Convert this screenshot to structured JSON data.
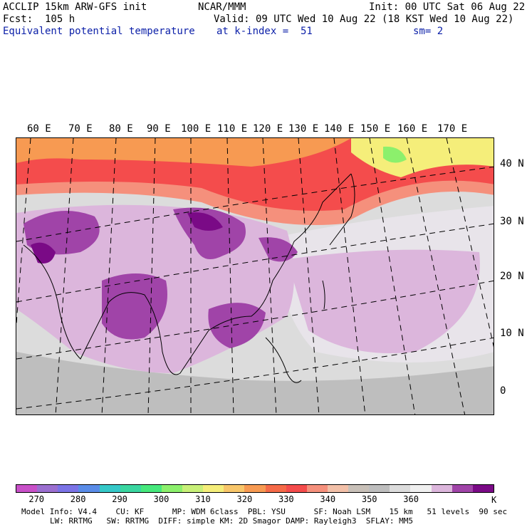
{
  "header": {
    "line1_left": "ACCLIP 15km ARW-GFS init",
    "line1_center": "NCAR/MMM",
    "line1_right": "Init: 00 UTC Sat 06 Aug 22",
    "line2_left": "Fcst:  105 h",
    "line2_right": "Valid: 09 UTC Wed 10 Aug 22 (18 KST Wed 10 Aug 22)",
    "line3_left": "Equivalent potential temperature",
    "line3_center": "at k-index =  51",
    "line3_right": "sm= 2"
  },
  "longitude_labels": [
    "60 E",
    "70 E",
    "80 E",
    "90 E",
    "100 E",
    "110 E",
    "120 E",
    "130 E",
    "140 E",
    "150 E",
    "160 E",
    "170 E"
  ],
  "latitude_labels": [
    "40 N",
    "30 N",
    "20 N",
    "10 N",
    "0"
  ],
  "colorbar": {
    "colors": [
      "#c850c8",
      "#9b6fd0",
      "#7b73e6",
      "#5a8ce8",
      "#35c8c8",
      "#3ad6a0",
      "#46e87c",
      "#8cf06c",
      "#c8f078",
      "#f5ee7a",
      "#f8c66a",
      "#f79a52",
      "#f56a48",
      "#f44c4c",
      "#f5907c",
      "#f2c0a8",
      "#c8c0b8",
      "#bebebe",
      "#dcdcdc",
      "#f0f0f0",
      "#dcb6dc",
      "#a044a8",
      "#7a0a86"
    ],
    "tick_labels": [
      "270",
      "280",
      "290",
      "300",
      "310",
      "320",
      "330",
      "340",
      "350",
      "360"
    ],
    "unit": "K"
  },
  "footer": {
    "line1": "Model Info: V4.4    CU: KF      MP: WDM 6class  PBL: YSU      SF: Noah LSM    15 km   51 levels  90 sec",
    "line2": "LW: RRTMG   SW: RRTMG  DIFF: simple KM: 2D Smagor DAMP: Rayleigh3  SFLAY: MM5"
  },
  "map_colors": {
    "hot": "#f44c4c",
    "warm": "#f79a52",
    "yellow": "#f5ee7a",
    "green": "#8cf06c",
    "gray": "#bebebe",
    "light_gray": "#dcdcdc",
    "white": "#f0f0f0",
    "lavender": "#dcb6dc",
    "purple": "#a044a8",
    "dark_purple": "#7a0a86"
  }
}
